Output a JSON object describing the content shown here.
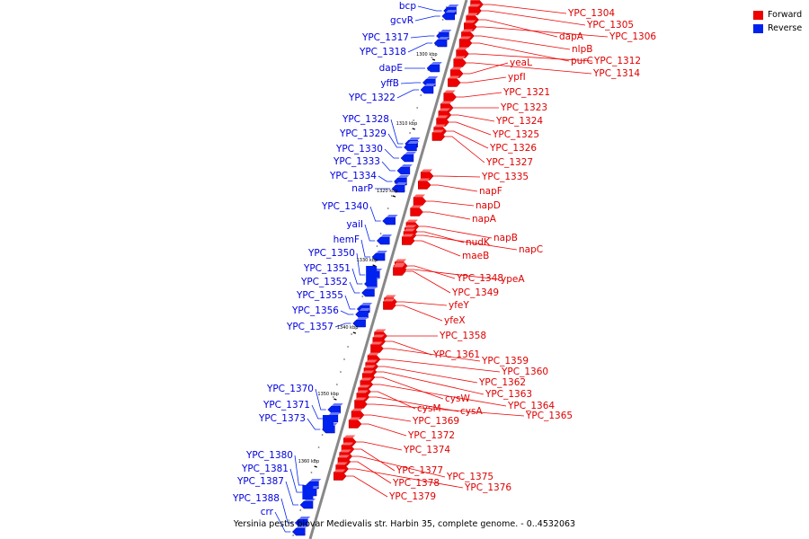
{
  "caption": "Yersinia pestis biovar Medievalis str. Harbin 35, complete genome. - 0..4532063",
  "colors": {
    "forward": "#ee0000",
    "reverse": "#0022ee",
    "forward_label": "#dd0000",
    "reverse_label": "#0000dd",
    "axis": "#888888"
  },
  "legend": [
    {
      "label": "Forward",
      "color": "#ee0000"
    },
    {
      "label": "Reverse",
      "color": "#0022ee"
    }
  ],
  "ticks": [
    "1300 kbp",
    "1310 kbp",
    "1320 kbp",
    "1330 kbp",
    "1340 kbp",
    "1350 kbp",
    "1360 kbp"
  ],
  "forward_genes": [
    "YPC_1304",
    "YPC_1305",
    "dapA",
    "YPC_1306",
    "nlpB",
    "purC",
    "YPC_1312",
    "YPC_1314",
    "yeaL",
    "ypfI",
    "YPC_1321",
    "YPC_1323",
    "YPC_1324",
    "YPC_1325",
    "YPC_1326",
    "YPC_1327",
    "YPC_1335",
    "napF",
    "napD",
    "napA",
    "napB",
    "nudK",
    "napC",
    "maeB",
    "YPC_1348",
    "ypeA",
    "YPC_1349",
    "yfeY",
    "yfeX",
    "YPC_1358",
    "YPC_1361",
    "YPC_1359",
    "YPC_1360",
    "YPC_1362",
    "YPC_1363",
    "cysW",
    "YPC_1364",
    "cysM",
    "cysA",
    "YPC_1365",
    "YPC_1369",
    "YPC_1372",
    "YPC_1374",
    "YPC_1377",
    "YPC_1375",
    "YPC_1378",
    "YPC_1376",
    "YPC_1379"
  ],
  "reverse_genes": [
    "bcp",
    "gcvR",
    "YPC_1317",
    "YPC_1318",
    "dapE",
    "yffB",
    "YPC_1322",
    "YPC_1328",
    "YPC_1329",
    "YPC_1330",
    "YPC_1333",
    "YPC_1334",
    "narP",
    "YPC_1340",
    "yaiI",
    "hemF",
    "YPC_1350",
    "YPC_1351",
    "YPC_1352",
    "YPC_1355",
    "YPC_1356",
    "YPC_1357",
    "YPC_1370",
    "YPC_1371",
    "YPC_1373",
    "YPC_1380",
    "YPC_1381",
    "YPC_1387",
    "YPC_1388",
    "crr"
  ]
}
